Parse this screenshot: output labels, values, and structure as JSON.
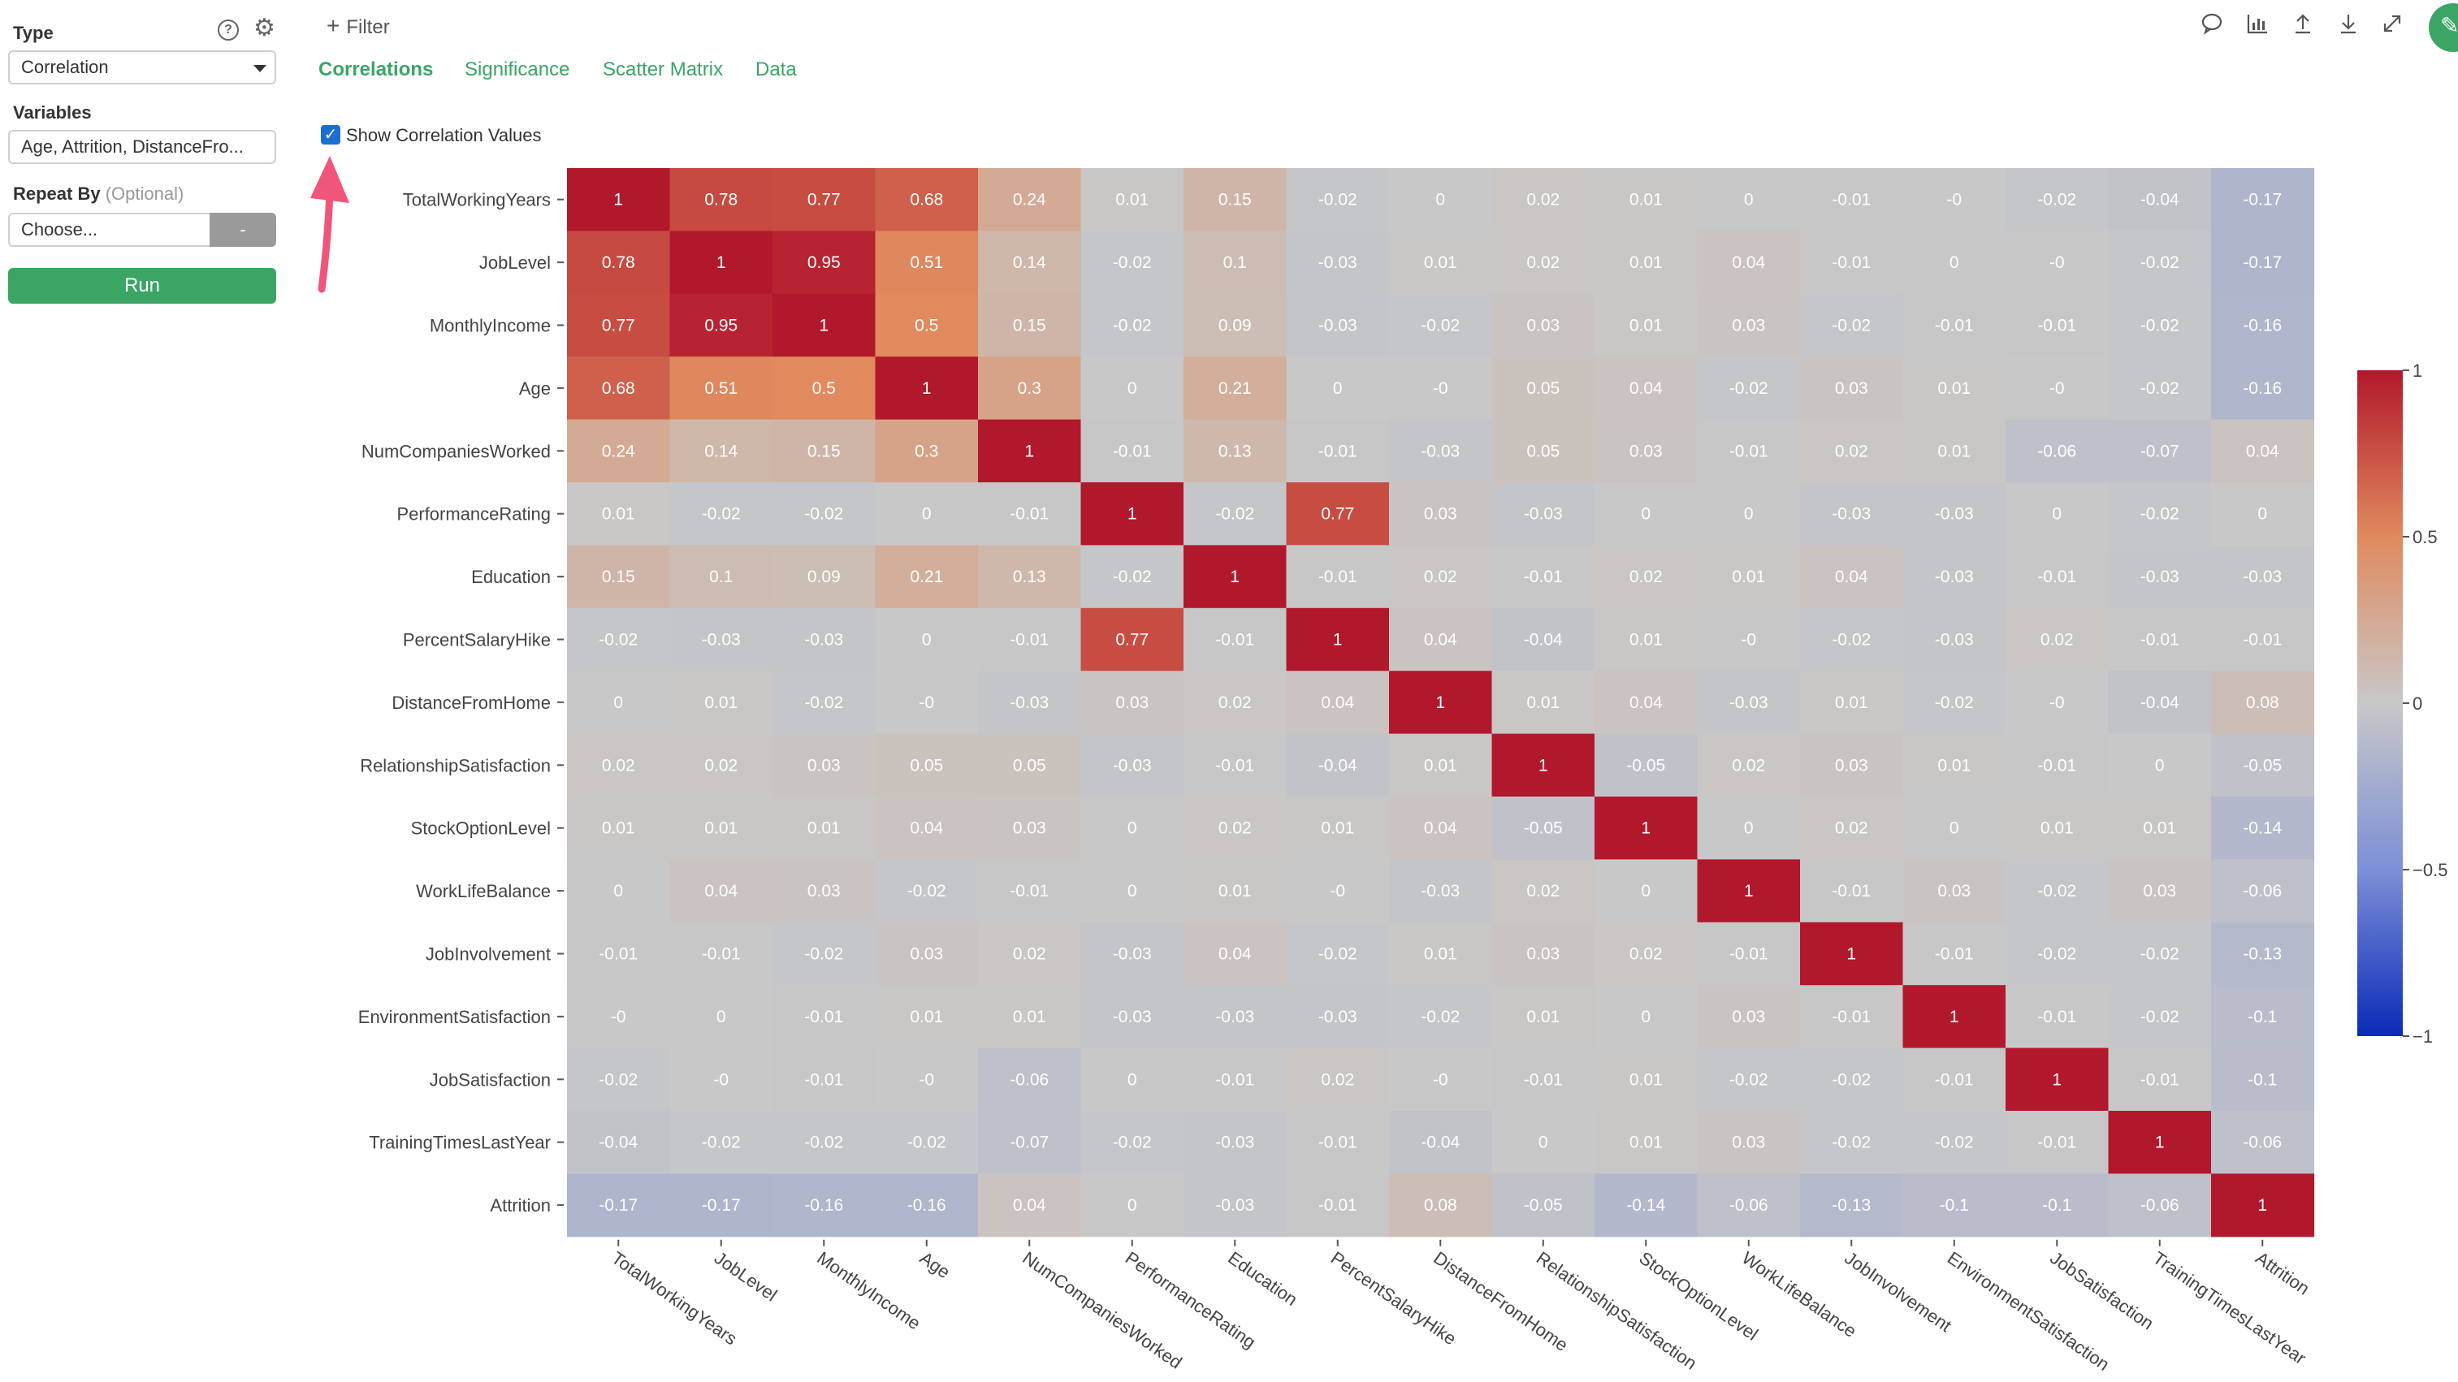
{
  "sidebar": {
    "type_label": "Type",
    "type_value": "Correlation",
    "variables_label": "Variables",
    "variables_value": "Age, Attrition, DistanceFro...",
    "repeat_label": "Repeat By",
    "repeat_optional": "(Optional)",
    "repeat_value": "Choose...",
    "repeat_clear": "-",
    "run_label": "Run",
    "help_icon": "question-circle-icon",
    "settings_icon": "gear-icon"
  },
  "header": {
    "filter_label": "Filter",
    "tabs": [
      {
        "label": "Correlations"
      },
      {
        "label": "Significance"
      },
      {
        "label": "Scatter Matrix"
      },
      {
        "label": "Data"
      }
    ],
    "active_tab": "Correlations",
    "toolbar_icons": [
      "comment-icon",
      "chart-icon",
      "upload-icon",
      "download-icon",
      "expand-icon",
      "pin-icon"
    ]
  },
  "options": {
    "show_values_label": "Show Correlation Values",
    "show_values_checked": true
  },
  "colors": {
    "accent": "#3aa565",
    "positive": "#b2182b",
    "neutral": "#c8c8c8",
    "negative": "#0a2bb8",
    "annotation_arrow": "#f0557a"
  },
  "chart_data": {
    "type": "heatmap",
    "variables": [
      "TotalWorkingYears",
      "JobLevel",
      "MonthlyIncome",
      "Age",
      "NumCompaniesWorked",
      "PerformanceRating",
      "Education",
      "PercentSalaryHike",
      "DistanceFromHome",
      "RelationshipSatisfaction",
      "StockOptionLevel",
      "WorkLifeBalance",
      "JobInvolvement",
      "EnvironmentSatisfaction",
      "JobSatisfaction",
      "TrainingTimesLastYear",
      "Attrition"
    ],
    "labels": [
      [
        "1",
        "0.78",
        "0.77",
        "0.68",
        "0.24",
        "0.01",
        "0.15",
        "-0.02",
        "0",
        "0.02",
        "0.01",
        "0",
        "-0.01",
        "-0",
        "-0.02",
        "-0.04",
        "-0.17"
      ],
      [
        "0.78",
        "1",
        "0.95",
        "0.51",
        "0.14",
        "-0.02",
        "0.1",
        "-0.03",
        "0.01",
        "0.02",
        "0.01",
        "0.04",
        "-0.01",
        "0",
        "-0",
        "-0.02",
        "-0.17"
      ],
      [
        "0.77",
        "0.95",
        "1",
        "0.5",
        "0.15",
        "-0.02",
        "0.09",
        "-0.03",
        "-0.02",
        "0.03",
        "0.01",
        "0.03",
        "-0.02",
        "-0.01",
        "-0.01",
        "-0.02",
        "-0.16"
      ],
      [
        "0.68",
        "0.51",
        "0.5",
        "1",
        "0.3",
        "0",
        "0.21",
        "0",
        "-0",
        "0.05",
        "0.04",
        "-0.02",
        "0.03",
        "0.01",
        "-0",
        "-0.02",
        "-0.16"
      ],
      [
        "0.24",
        "0.14",
        "0.15",
        "0.3",
        "1",
        "-0.01",
        "0.13",
        "-0.01",
        "-0.03",
        "0.05",
        "0.03",
        "-0.01",
        "0.02",
        "0.01",
        "-0.06",
        "-0.07",
        "0.04"
      ],
      [
        "0.01",
        "-0.02",
        "-0.02",
        "0",
        "-0.01",
        "1",
        "-0.02",
        "0.77",
        "0.03",
        "-0.03",
        "0",
        "0",
        "-0.03",
        "-0.03",
        "0",
        "-0.02",
        "0"
      ],
      [
        "0.15",
        "0.1",
        "0.09",
        "0.21",
        "0.13",
        "-0.02",
        "1",
        "-0.01",
        "0.02",
        "-0.01",
        "0.02",
        "0.01",
        "0.04",
        "-0.03",
        "-0.01",
        "-0.03",
        "-0.03"
      ],
      [
        "-0.02",
        "-0.03",
        "-0.03",
        "0",
        "-0.01",
        "0.77",
        "-0.01",
        "1",
        "0.04",
        "-0.04",
        "0.01",
        "-0",
        "-0.02",
        "-0.03",
        "0.02",
        "-0.01",
        "-0.01"
      ],
      [
        "0",
        "0.01",
        "-0.02",
        "-0",
        "-0.03",
        "0.03",
        "0.02",
        "0.04",
        "1",
        "0.01",
        "0.04",
        "-0.03",
        "0.01",
        "-0.02",
        "-0",
        "-0.04",
        "0.08"
      ],
      [
        "0.02",
        "0.02",
        "0.03",
        "0.05",
        "0.05",
        "-0.03",
        "-0.01",
        "-0.04",
        "0.01",
        "1",
        "-0.05",
        "0.02",
        "0.03",
        "0.01",
        "-0.01",
        "0",
        "-0.05"
      ],
      [
        "0.01",
        "0.01",
        "0.01",
        "0.04",
        "0.03",
        "0",
        "0.02",
        "0.01",
        "0.04",
        "-0.05",
        "1",
        "0",
        "0.02",
        "0",
        "0.01",
        "0.01",
        "-0.14"
      ],
      [
        "0",
        "0.04",
        "0.03",
        "-0.02",
        "-0.01",
        "0",
        "0.01",
        "-0",
        "-0.03",
        "0.02",
        "0",
        "1",
        "-0.01",
        "0.03",
        "-0.02",
        "0.03",
        "-0.06"
      ],
      [
        "-0.01",
        "-0.01",
        "-0.02",
        "0.03",
        "0.02",
        "-0.03",
        "0.04",
        "-0.02",
        "0.01",
        "0.03",
        "0.02",
        "-0.01",
        "1",
        "-0.01",
        "-0.02",
        "-0.02",
        "-0.13"
      ],
      [
        "-0",
        "0",
        "-0.01",
        "0.01",
        "0.01",
        "-0.03",
        "-0.03",
        "-0.03",
        "-0.02",
        "0.01",
        "0",
        "0.03",
        "-0.01",
        "1",
        "-0.01",
        "-0.02",
        "-0.1"
      ],
      [
        "-0.02",
        "-0",
        "-0.01",
        "-0",
        "-0.06",
        "0",
        "-0.01",
        "0.02",
        "-0",
        "-0.01",
        "0.01",
        "-0.02",
        "-0.02",
        "-0.01",
        "1",
        "-0.01",
        "-0.1"
      ],
      [
        "-0.04",
        "-0.02",
        "-0.02",
        "-0.02",
        "-0.07",
        "-0.02",
        "-0.03",
        "-0.01",
        "-0.04",
        "0",
        "0.01",
        "0.03",
        "-0.02",
        "-0.02",
        "-0.01",
        "1",
        "-0.06"
      ],
      [
        "-0.17",
        "-0.17",
        "-0.16",
        "-0.16",
        "0.04",
        "0",
        "-0.03",
        "-0.01",
        "0.08",
        "-0.05",
        "-0.14",
        "-0.06",
        "-0.13",
        "-0.1",
        "-0.1",
        "-0.06",
        "1"
      ]
    ],
    "colorbar": {
      "range": [
        -1,
        1
      ],
      "ticks": [
        "1",
        "0.5",
        "0",
        "−0.5",
        "−1"
      ]
    }
  }
}
